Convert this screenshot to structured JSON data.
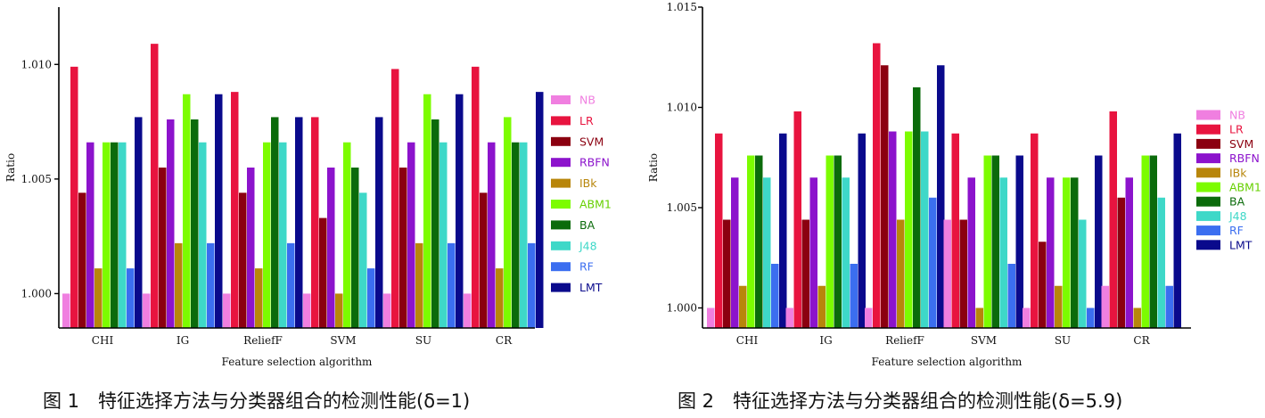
{
  "chart_data": [
    {
      "type": "bar",
      "ylabel": "Ratio",
      "xlabel": "Feature selection algorithm",
      "ylim": [
        0.9985,
        1.0125
      ],
      "yticks": [
        "1.000",
        "1.005",
        "1.010"
      ],
      "categories": [
        "CHI",
        "IG",
        "ReliefF",
        "SVM",
        "SU",
        "CR"
      ],
      "legend_position": "right",
      "series": [
        {
          "name": "NB",
          "color": "#F07FE0",
          "label_color": "#F07FE0",
          "values": [
            1.0,
            1.0,
            1.0,
            1.0,
            1.0,
            1.0
          ]
        },
        {
          "name": "LR",
          "color": "#E8143F",
          "label_color": "#E8143F",
          "values": [
            1.0099,
            1.0109,
            1.0088,
            1.0077,
            1.0098,
            1.0099
          ]
        },
        {
          "name": "SVM",
          "color": "#8B0010",
          "label_color": "#8B0010",
          "values": [
            1.0044,
            1.0055,
            1.0044,
            1.0033,
            1.0055,
            1.0044
          ]
        },
        {
          "name": "RBFN",
          "color": "#8C13CC",
          "label_color": "#8C13CC",
          "values": [
            1.0066,
            1.0076,
            1.0055,
            1.0055,
            1.0066,
            1.0066
          ]
        },
        {
          "name": "IBk",
          "color": "#B8860B",
          "label_color": "#B8860B",
          "values": [
            1.0011,
            1.0022,
            1.0011,
            1.0,
            1.0022,
            1.0011
          ]
        },
        {
          "name": "ABM1",
          "color": "#7CFC00",
          "label_color": "#66D000",
          "values": [
            1.0066,
            1.0087,
            1.0066,
            1.0066,
            1.0087,
            1.0077
          ]
        },
        {
          "name": "BA",
          "color": "#0B6B0B",
          "label_color": "#0B6B0B",
          "values": [
            1.0066,
            1.0076,
            1.0077,
            1.0055,
            1.0076,
            1.0066
          ]
        },
        {
          "name": "J48",
          "color": "#3ED8C8",
          "label_color": "#3ED8C8",
          "values": [
            1.0066,
            1.0066,
            1.0066,
            1.0044,
            1.0066,
            1.0066
          ]
        },
        {
          "name": "RF",
          "color": "#3B6EF0",
          "label_color": "#3B6EF0",
          "values": [
            1.0011,
            1.0022,
            1.0022,
            1.0011,
            1.0022,
            1.0022
          ]
        },
        {
          "name": "LMT",
          "color": "#0A0A8C",
          "label_color": "#0A0A8C",
          "values": [
            1.0077,
            1.0087,
            1.0077,
            1.0077,
            1.0087,
            1.0088
          ]
        }
      ],
      "caption": "图 1　特征选择方法与分类器组合的检测性能(δ=1)"
    },
    {
      "type": "bar",
      "ylabel": "Ratio",
      "xlabel": "Feature selection algorithm",
      "ylim": [
        0.999,
        1.015
      ],
      "yticks": [
        "1.000",
        "1.005",
        "1.010",
        "1.015"
      ],
      "categories": [
        "CHI",
        "IG",
        "ReliefF",
        "SVM",
        "SU",
        "CR"
      ],
      "legend_position": "right",
      "series": [
        {
          "name": "NB",
          "color": "#F07FE0",
          "label_color": "#F07FE0",
          "values": [
            1.0,
            1.0,
            1.0,
            1.0044,
            1.0,
            1.0011
          ]
        },
        {
          "name": "LR",
          "color": "#E8143F",
          "label_color": "#E8143F",
          "values": [
            1.0087,
            1.0098,
            1.0132,
            1.0087,
            1.0087,
            1.0098
          ]
        },
        {
          "name": "SVM",
          "color": "#8B0010",
          "label_color": "#8B0010",
          "values": [
            1.0044,
            1.0044,
            1.0121,
            1.0044,
            1.0033,
            1.0055
          ]
        },
        {
          "name": "RBFN",
          "color": "#8C13CC",
          "label_color": "#8C13CC",
          "values": [
            1.0065,
            1.0065,
            1.0088,
            1.0065,
            1.0065,
            1.0065
          ]
        },
        {
          "name": "IBk",
          "color": "#B8860B",
          "label_color": "#B8860B",
          "values": [
            1.0011,
            1.0011,
            1.0044,
            1.0,
            1.0011,
            1.0
          ]
        },
        {
          "name": "ABM1",
          "color": "#7CFC00",
          "label_color": "#66D000",
          "values": [
            1.0076,
            1.0076,
            1.0088,
            1.0076,
            1.0065,
            1.0076
          ]
        },
        {
          "name": "BA",
          "color": "#0B6B0B",
          "label_color": "#0B6B0B",
          "values": [
            1.0076,
            1.0076,
            1.011,
            1.0076,
            1.0065,
            1.0076
          ]
        },
        {
          "name": "J48",
          "color": "#3ED8C8",
          "label_color": "#3ED8C8",
          "values": [
            1.0065,
            1.0065,
            1.0088,
            1.0065,
            1.0044,
            1.0055
          ]
        },
        {
          "name": "RF",
          "color": "#3B6EF0",
          "label_color": "#3B6EF0",
          "values": [
            1.0022,
            1.0022,
            1.0055,
            1.0022,
            1.0,
            1.0011
          ]
        },
        {
          "name": "LMT",
          "color": "#0A0A8C",
          "label_color": "#0A0A8C",
          "values": [
            1.0087,
            1.0087,
            1.0121,
            1.0076,
            1.0076,
            1.0087
          ]
        }
      ],
      "caption": "图 2　特征选择方法与分类器组合的检测性能(δ=5.9)"
    }
  ]
}
